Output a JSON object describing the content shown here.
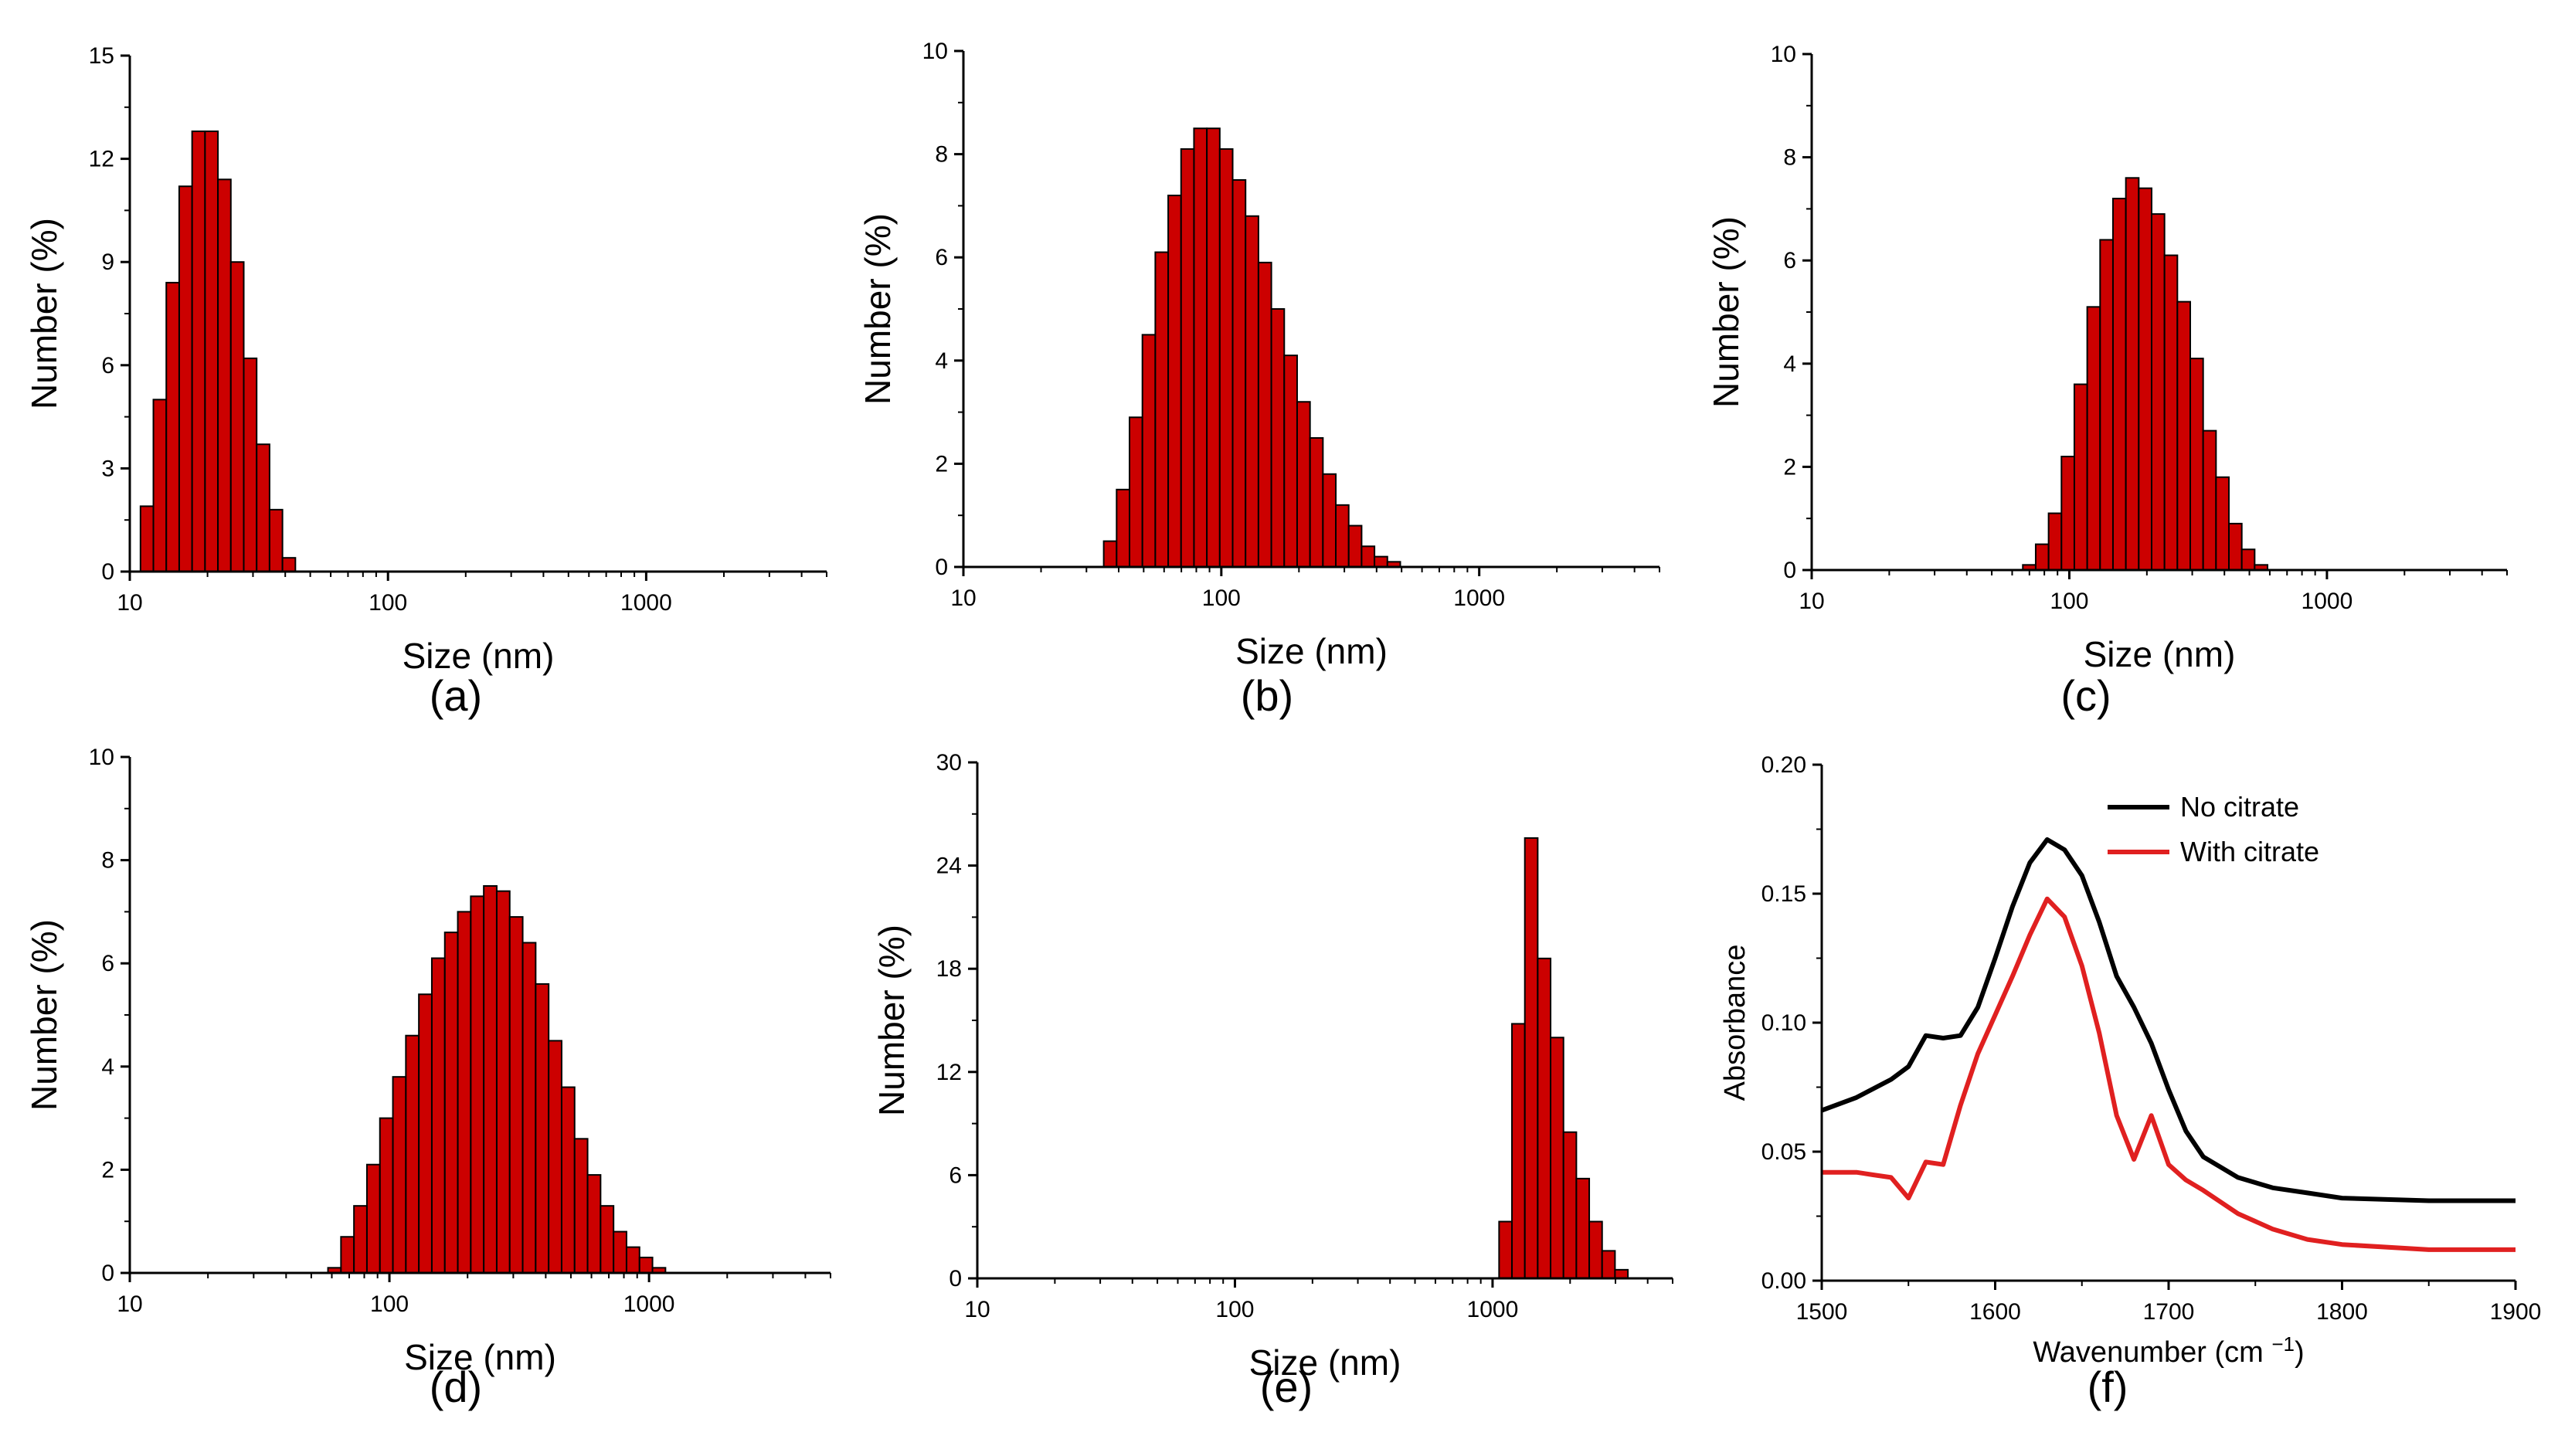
{
  "chart_data": [
    {
      "id": "a",
      "type": "bar",
      "panel_label": "(a)",
      "xlabel": "Size (nm)",
      "ylabel": "Number (%)",
      "xscale": "log",
      "xlim": [
        10,
        5000
      ],
      "xticks": [
        "10",
        "100",
        "1000"
      ],
      "ylim": [
        0,
        15
      ],
      "yticks": [
        "0",
        "3",
        "6",
        "9",
        "12",
        "15"
      ],
      "bar_color": "#cc0000",
      "bins": {
        "start": 11.0,
        "ratio": 1.122
      },
      "values": [
        1.9,
        5.0,
        8.4,
        11.2,
        12.8,
        12.8,
        11.4,
        9.0,
        6.2,
        3.7,
        1.8,
        0.4
      ]
    },
    {
      "id": "b",
      "type": "bar",
      "panel_label": "(b)",
      "xlabel": "Size (nm)",
      "ylabel": "Number (%)",
      "xscale": "log",
      "xlim": [
        10,
        5000
      ],
      "xticks": [
        "10",
        "100",
        "1000"
      ],
      "ylim": [
        0,
        10
      ],
      "yticks": [
        "0",
        "2",
        "4",
        "6",
        "8",
        "10"
      ],
      "bar_color": "#cc0000",
      "bins": {
        "start": 35.0,
        "ratio": 1.122
      },
      "values": [
        0.5,
        1.5,
        2.9,
        4.5,
        6.1,
        7.2,
        8.1,
        8.5,
        8.5,
        8.1,
        7.5,
        6.8,
        5.9,
        5.0,
        4.1,
        3.2,
        2.5,
        1.8,
        1.2,
        0.8,
        0.4,
        0.2,
        0.1
      ]
    },
    {
      "id": "c",
      "type": "bar",
      "panel_label": "(c)",
      "xlabel": "Size (nm)",
      "ylabel": "Number (%)",
      "xscale": "log",
      "xlim": [
        10,
        5000
      ],
      "xticks": [
        "10",
        "100",
        "1000"
      ],
      "ylim": [
        0,
        10
      ],
      "yticks": [
        "0",
        "2",
        "4",
        "6",
        "8",
        "10"
      ],
      "bar_color": "#cc0000",
      "bins": {
        "start": 66.0,
        "ratio": 1.122
      },
      "values": [
        0.1,
        0.5,
        1.1,
        2.2,
        3.6,
        5.1,
        6.4,
        7.2,
        7.6,
        7.4,
        6.9,
        6.1,
        5.2,
        4.1,
        2.7,
        1.8,
        0.9,
        0.4,
        0.1
      ]
    },
    {
      "id": "d",
      "type": "bar",
      "panel_label": "(d)",
      "xlabel": "Size (nm)",
      "ylabel": "Number (%)",
      "xscale": "log",
      "xlim": [
        10,
        5000
      ],
      "xticks": [
        "10",
        "100",
        "1000"
      ],
      "ylim": [
        0,
        10
      ],
      "yticks": [
        "0",
        "2",
        "4",
        "6",
        "8",
        "10"
      ],
      "bar_color": "#cc0000",
      "bins": {
        "start": 58.0,
        "ratio": 1.122
      },
      "values": [
        0.1,
        0.7,
        1.3,
        2.1,
        3.0,
        3.8,
        4.6,
        5.4,
        6.1,
        6.6,
        7.0,
        7.3,
        7.5,
        7.4,
        6.9,
        6.4,
        5.6,
        4.5,
        3.6,
        2.6,
        1.9,
        1.3,
        0.8,
        0.5,
        0.3,
        0.1
      ]
    },
    {
      "id": "e",
      "type": "bar",
      "panel_label": "(e)",
      "xlabel": "Size (nm)",
      "ylabel": "Number (%)",
      "xscale": "log",
      "xlim": [
        10,
        5000
      ],
      "xticks": [
        "10",
        "100",
        "1000"
      ],
      "ylim": [
        0,
        30
      ],
      "yticks": [
        "0",
        "6",
        "12",
        "18",
        "24",
        "30"
      ],
      "bar_color": "#cc0000",
      "bins": {
        "start": 1060.0,
        "ratio": 1.122
      },
      "values": [
        3.3,
        14.8,
        25.6,
        18.6,
        14.0,
        8.5,
        5.8,
        3.3,
        1.6,
        0.5
      ]
    },
    {
      "id": "f",
      "type": "line",
      "panel_label": "(f)",
      "xlabel": "Wavenumber (cm",
      "xlabel_superscript": "−1",
      "xlabel_suffix": ")",
      "ylabel": "Absorbance",
      "xlim": [
        1500,
        1900
      ],
      "xticks": [
        "1500",
        "1600",
        "1700",
        "1800",
        "1900"
      ],
      "ylim": [
        0.0,
        0.2
      ],
      "yticks": [
        "0.00",
        "0.05",
        "0.10",
        "0.15",
        "0.20"
      ],
      "legend_position": "top-left",
      "series": [
        {
          "name": "No citrate",
          "color": "#000000",
          "x": [
            1500,
            1520,
            1540,
            1550,
            1560,
            1570,
            1580,
            1590,
            1600,
            1610,
            1620,
            1630,
            1640,
            1650,
            1660,
            1670,
            1680,
            1690,
            1700,
            1710,
            1720,
            1740,
            1760,
            1780,
            1800,
            1850,
            1900
          ],
          "y": [
            0.066,
            0.071,
            0.078,
            0.083,
            0.095,
            0.094,
            0.095,
            0.106,
            0.125,
            0.145,
            0.162,
            0.171,
            0.167,
            0.157,
            0.139,
            0.118,
            0.106,
            0.092,
            0.074,
            0.058,
            0.048,
            0.04,
            0.036,
            0.034,
            0.032,
            0.031,
            0.031
          ]
        },
        {
          "name": "With citrate",
          "color": "#e02020",
          "x": [
            1500,
            1520,
            1530,
            1540,
            1550,
            1560,
            1570,
            1580,
            1590,
            1600,
            1610,
            1620,
            1630,
            1640,
            1650,
            1660,
            1670,
            1680,
            1690,
            1700,
            1710,
            1720,
            1740,
            1760,
            1780,
            1800,
            1850,
            1900
          ],
          "y": [
            0.042,
            0.042,
            0.041,
            0.04,
            0.032,
            0.046,
            0.045,
            0.068,
            0.088,
            0.103,
            0.118,
            0.134,
            0.148,
            0.141,
            0.122,
            0.096,
            0.064,
            0.047,
            0.064,
            0.045,
            0.039,
            0.035,
            0.026,
            0.02,
            0.016,
            0.014,
            0.012,
            0.012
          ]
        }
      ]
    }
  ]
}
